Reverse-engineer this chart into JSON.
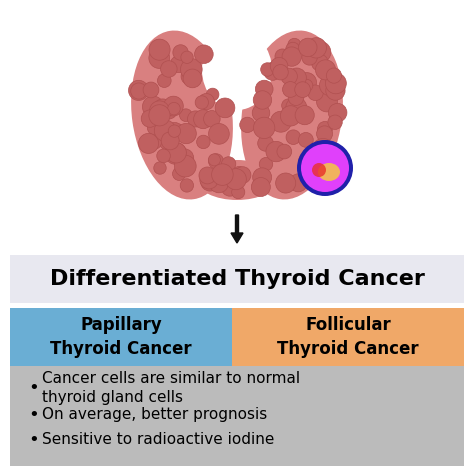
{
  "title": "Differentiated Thyroid Cancer",
  "title_fontsize": 16,
  "title_bg_color": "#e8e8f0",
  "header_left_text": "Papillary\nThyroid Cancer",
  "header_right_text": "Follicular\nThyroid Cancer",
  "header_left_color": "#6aaed4",
  "header_right_color": "#f0a868",
  "bullet_bg_color": "#bbbbbb",
  "bullet_points": [
    "Cancer cells are similar to normal\nthyroid gland cells",
    "On average, better prognosis",
    "Sensitive to radioactive iodine"
  ],
  "bullet_fontsize": 11,
  "header_fontsize": 12,
  "bg_color": "#ffffff",
  "arrow_color": "#111111",
  "text_color": "#000000",
  "thyroid_base_color": "#d98080",
  "thyroid_bump_dark": "#c06060",
  "thyroid_bump_edge": "#b05050",
  "tumor_magenta": "#e040fb",
  "tumor_yellow": "#f5c842",
  "tumor_red": "#e8302a",
  "tumor_blue": "#3030c8"
}
